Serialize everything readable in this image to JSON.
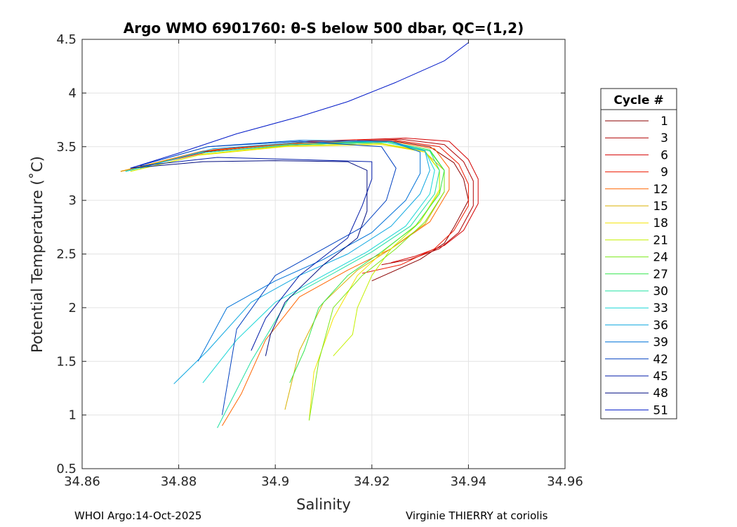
{
  "chart_data": {
    "type": "line",
    "title": "Argo WMO 6901760: θ-S below 500 dbar,  QC=(1,2)",
    "xlabel": "Salinity",
    "ylabel": "Potential Temperature (˚C)",
    "xlim": [
      34.86,
      34.96
    ],
    "ylim": [
      0.5,
      4.5
    ],
    "xticks": [
      34.86,
      34.88,
      34.9,
      34.92,
      34.94,
      34.96
    ],
    "xtick_labels": [
      "34.86",
      "34.88",
      "34.9",
      "34.92",
      "34.94",
      "34.96"
    ],
    "yticks": [
      0.5,
      1,
      1.5,
      2,
      2.5,
      3,
      3.5,
      4,
      4.5
    ],
    "ytick_labels": [
      "0.5",
      "1",
      "1.5",
      "2",
      "2.5",
      "3",
      "3.5",
      "4",
      "4.5"
    ],
    "grid": true,
    "legend": {
      "title": "Cycle #",
      "placement": "outside-right",
      "entries": [
        {
          "label": "1",
          "color": "#8b0000"
        },
        {
          "label": "3",
          "color": "#b00000"
        },
        {
          "label": "6",
          "color": "#d40000"
        },
        {
          "label": "9",
          "color": "#ee1a00"
        },
        {
          "label": "12",
          "color": "#ff6600"
        },
        {
          "label": "15",
          "color": "#d8b000"
        },
        {
          "label": "18",
          "color": "#f4e400"
        },
        {
          "label": "21",
          "color": "#c4f000"
        },
        {
          "label": "24",
          "color": "#7ce81a"
        },
        {
          "label": "27",
          "color": "#33e64d"
        },
        {
          "label": "30",
          "color": "#1ee0a0"
        },
        {
          "label": "33",
          "color": "#19d6d6"
        },
        {
          "label": "36",
          "color": "#10a8e0"
        },
        {
          "label": "39",
          "color": "#0072d8"
        },
        {
          "label": "42",
          "color": "#0040c0"
        },
        {
          "label": "45",
          "color": "#001aa8"
        },
        {
          "label": "48",
          "color": "#000c80"
        },
        {
          "label": "51",
          "color": "#0018c8"
        }
      ]
    },
    "series": [
      {
        "name": "1",
        "color": "#8b0000",
        "x": [
          34.869,
          34.885,
          34.905,
          34.925,
          34.932,
          34.937,
          34.939,
          34.94,
          34.937,
          34.935,
          34.93,
          34.92
        ],
        "y": [
          3.27,
          3.45,
          3.52,
          3.55,
          3.5,
          3.35,
          3.2,
          3.0,
          2.75,
          2.6,
          2.45,
          2.25
        ]
      },
      {
        "name": "3",
        "color": "#b00000",
        "x": [
          34.868,
          34.886,
          34.906,
          34.926,
          34.935,
          34.939,
          34.941,
          34.941,
          34.938,
          34.934,
          34.928,
          34.922
        ],
        "y": [
          3.27,
          3.46,
          3.54,
          3.57,
          3.52,
          3.36,
          3.18,
          2.95,
          2.7,
          2.55,
          2.45,
          2.4
        ]
      },
      {
        "name": "6",
        "color": "#d40000",
        "x": [
          34.868,
          34.887,
          34.907,
          34.927,
          34.936,
          34.94,
          34.942,
          34.942,
          34.939,
          34.935,
          34.929,
          34.924
        ],
        "y": [
          3.27,
          3.47,
          3.55,
          3.58,
          3.55,
          3.38,
          3.2,
          2.97,
          2.72,
          2.58,
          2.48,
          2.42
        ]
      },
      {
        "name": "9",
        "color": "#ee1a00",
        "x": [
          34.868,
          34.886,
          34.905,
          34.925,
          34.934,
          34.938,
          34.94,
          34.94,
          34.937,
          34.933,
          34.926,
          34.918
        ],
        "y": [
          3.27,
          3.45,
          3.53,
          3.56,
          3.5,
          3.34,
          3.15,
          2.95,
          2.72,
          2.55,
          2.4,
          2.32
        ]
      },
      {
        "name": "12",
        "color": "#ff6600",
        "x": [
          34.868,
          34.885,
          34.904,
          34.924,
          34.933,
          34.936,
          34.936,
          34.932,
          34.924,
          34.915,
          34.905,
          34.898,
          34.893,
          34.889
        ],
        "y": [
          3.27,
          3.46,
          3.53,
          3.55,
          3.48,
          3.3,
          3.1,
          2.8,
          2.55,
          2.35,
          2.1,
          1.7,
          1.2,
          0.9
        ]
      },
      {
        "name": "15",
        "color": "#d8b000",
        "x": [
          34.868,
          34.884,
          34.902,
          34.922,
          34.931,
          34.935,
          34.935,
          34.931,
          34.924,
          34.917,
          34.91,
          34.905,
          34.902
        ],
        "y": [
          3.27,
          3.44,
          3.51,
          3.53,
          3.45,
          3.28,
          3.08,
          2.78,
          2.55,
          2.35,
          2.05,
          1.6,
          1.05
        ]
      },
      {
        "name": "18",
        "color": "#f4e400",
        "x": [
          34.87,
          34.884,
          34.902,
          34.922,
          34.931,
          34.934,
          34.934,
          34.93,
          34.923,
          34.917,
          34.912,
          34.908,
          34.907
        ],
        "y": [
          3.27,
          3.42,
          3.5,
          3.52,
          3.45,
          3.28,
          3.1,
          2.8,
          2.55,
          2.3,
          1.9,
          1.4,
          0.95
        ]
      },
      {
        "name": "21",
        "color": "#c4f000",
        "x": [
          34.87,
          34.885,
          34.903,
          34.922,
          34.931,
          34.934,
          34.934,
          34.93,
          34.924,
          34.92,
          34.917,
          34.916,
          34.912
        ],
        "y": [
          3.27,
          3.43,
          3.51,
          3.53,
          3.46,
          3.28,
          3.08,
          2.8,
          2.55,
          2.3,
          2.0,
          1.75,
          1.55
        ]
      },
      {
        "name": "24",
        "color": "#7ce81a",
        "x": [
          34.869,
          34.884,
          34.903,
          34.923,
          34.932,
          34.935,
          34.935,
          34.931,
          34.925,
          34.918,
          34.912,
          34.909,
          34.907
        ],
        "y": [
          3.27,
          3.44,
          3.52,
          3.54,
          3.46,
          3.28,
          3.08,
          2.8,
          2.55,
          2.3,
          2.0,
          1.5,
          0.95
        ]
      },
      {
        "name": "27",
        "color": "#33e64d",
        "x": [
          34.869,
          34.884,
          34.903,
          34.923,
          34.932,
          34.935,
          34.934,
          34.929,
          34.922,
          34.915,
          34.909,
          34.906,
          34.903
        ],
        "y": [
          3.27,
          3.44,
          3.52,
          3.55,
          3.47,
          3.28,
          3.06,
          2.76,
          2.52,
          2.3,
          2.0,
          1.6,
          1.3
        ]
      },
      {
        "name": "30",
        "color": "#1ee0a0",
        "x": [
          34.869,
          34.884,
          34.903,
          34.923,
          34.932,
          34.934,
          34.933,
          34.928,
          34.92,
          34.912,
          34.903,
          34.895,
          34.888
        ],
        "y": [
          3.27,
          3.44,
          3.52,
          3.54,
          3.46,
          3.28,
          3.06,
          2.76,
          2.52,
          2.32,
          2.1,
          1.5,
          0.88
        ]
      },
      {
        "name": "33",
        "color": "#19d6d6",
        "x": [
          34.869,
          34.884,
          34.903,
          34.923,
          34.931,
          34.933,
          34.932,
          34.927,
          34.919,
          34.91,
          34.9,
          34.892,
          34.885
        ],
        "y": [
          3.27,
          3.44,
          3.52,
          3.54,
          3.46,
          3.28,
          3.06,
          2.76,
          2.52,
          2.3,
          2.05,
          1.7,
          1.3
        ]
      },
      {
        "name": "36",
        "color": "#10a8e0",
        "x": [
          34.872,
          34.887,
          34.905,
          34.924,
          34.931,
          34.932,
          34.93,
          34.924,
          34.915,
          34.905,
          34.895,
          34.886,
          34.879
        ],
        "y": [
          3.3,
          3.48,
          3.54,
          3.55,
          3.46,
          3.28,
          3.06,
          2.76,
          2.5,
          2.3,
          2.05,
          1.6,
          1.29
        ]
      },
      {
        "name": "39",
        "color": "#0072d8",
        "x": [
          34.87,
          34.886,
          34.905,
          34.924,
          34.93,
          34.93,
          34.927,
          34.92,
          34.91,
          34.9,
          34.89,
          34.884
        ],
        "y": [
          3.3,
          3.5,
          3.56,
          3.55,
          3.45,
          3.25,
          3.0,
          2.7,
          2.45,
          2.25,
          2.0,
          1.5
        ]
      },
      {
        "name": "42",
        "color": "#0040c0",
        "x": [
          34.87,
          34.886,
          34.905,
          34.922,
          34.925,
          34.923,
          34.918,
          34.91,
          34.9,
          34.892,
          34.889
        ],
        "y": [
          3.3,
          3.5,
          3.55,
          3.5,
          3.3,
          3.0,
          2.75,
          2.55,
          2.3,
          1.8,
          1.0
        ]
      },
      {
        "name": "45",
        "color": "#001aa8",
        "x": [
          34.872,
          34.888,
          34.905,
          34.92,
          34.92,
          34.918,
          34.915,
          34.905,
          34.898,
          34.895
        ],
        "y": [
          3.32,
          3.4,
          3.38,
          3.36,
          3.2,
          2.95,
          2.65,
          2.3,
          1.9,
          1.6
        ]
      },
      {
        "name": "48",
        "color": "#000c80",
        "x": [
          34.87,
          34.885,
          34.9,
          34.915,
          34.919,
          34.919,
          34.919,
          34.917,
          34.91,
          34.902,
          34.899,
          34.898
        ],
        "y": [
          3.3,
          3.36,
          3.37,
          3.36,
          3.28,
          3.1,
          2.9,
          2.65,
          2.4,
          2.05,
          1.75,
          1.55
        ]
      },
      {
        "name": "51",
        "color": "#0018c8",
        "x": [
          34.87,
          34.88,
          34.892,
          34.905,
          34.915,
          34.925,
          34.935,
          34.94
        ],
        "y": [
          3.3,
          3.44,
          3.62,
          3.78,
          3.92,
          4.1,
          4.3,
          4.47
        ]
      }
    ]
  },
  "footer": {
    "left": "WHOI Argo:14-Oct-2025",
    "right": "Virginie THIERRY at coriolis"
  }
}
